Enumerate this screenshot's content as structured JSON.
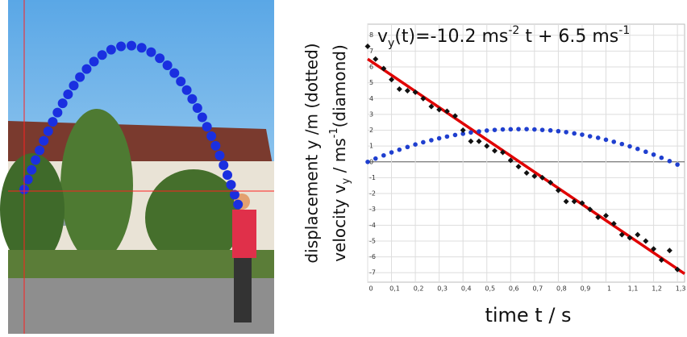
{
  "chart_data": {
    "type": "scatter",
    "annotation": [
      "v",
      "y",
      "(t)=-10.2 ms",
      "-2",
      " t + 6.5 ms",
      "-1"
    ],
    "ylabel": [
      "displacement y /m (dotted)",
      "velocity v",
      "y",
      " / ms",
      "-1",
      "(diamond)"
    ],
    "xlabel": "time t / s",
    "x": [
      0,
      0.033,
      0.067,
      0.1,
      0.133,
      0.167,
      0.2,
      0.233,
      0.267,
      0.3,
      0.333,
      0.367,
      0.4,
      0.433,
      0.467,
      0.5,
      0.533,
      0.567,
      0.6,
      0.633,
      0.667,
      0.7,
      0.733,
      0.767,
      0.8,
      0.833,
      0.867,
      0.9,
      0.933,
      0.967,
      1.0,
      1.033,
      1.067,
      1.1,
      1.133,
      1.167,
      1.2,
      1.233,
      1.267,
      1.3
    ],
    "series": [
      {
        "color": "#1f3fcf",
        "marker": "circle",
        "values": [
          0,
          0.21,
          0.41,
          0.6,
          0.77,
          0.94,
          1.1,
          1.24,
          1.37,
          1.49,
          1.6,
          1.7,
          1.78,
          1.86,
          1.92,
          1.98,
          2.02,
          2.05,
          2.06,
          2.07,
          2.07,
          2.05,
          2.02,
          1.99,
          1.94,
          1.88,
          1.8,
          1.72,
          1.62,
          1.52,
          1.4,
          1.27,
          1.13,
          0.98,
          0.82,
          0.64,
          0.46,
          0.26,
          0.05,
          -0.17
        ]
      },
      {
        "color": "#111111",
        "marker": "diamond",
        "values": [
          7.3,
          6.5,
          5.9,
          5.2,
          4.6,
          4.5,
          4.4,
          4.0,
          3.5,
          3.3,
          3.2,
          2.9,
          2.0,
          1.3,
          1.3,
          1.0,
          0.7,
          0.6,
          0.1,
          -0.3,
          -0.7,
          -0.9,
          -1.0,
          -1.3,
          -1.8,
          -2.5,
          -2.5,
          -2.6,
          -3.0,
          -3.5,
          -3.4,
          -3.9,
          -4.6,
          -4.8,
          -4.6,
          -5.0,
          -5.5,
          -6.2,
          -5.6,
          -6.8
        ]
      }
    ],
    "fit": {
      "slope": -10.2,
      "intercept": 6.5,
      "color": "#e00000"
    },
    "xlim": [
      0,
      1.33
    ],
    "ylim": [
      -7.6,
      8.7
    ],
    "xticks": [
      0,
      {
        "value": 0.1,
        "label": "0,1"
      },
      {
        "value": 0.2,
        "label": "0,2"
      },
      {
        "value": 0.3,
        "label": "0,3"
      },
      {
        "value": 0.4,
        "label": "0,4"
      },
      {
        "value": 0.5,
        "label": "0,5"
      },
      {
        "value": 0.6,
        "label": "0,6"
      },
      {
        "value": 0.7,
        "label": "0,7"
      },
      {
        "value": 0.8,
        "label": "0,8"
      },
      {
        "value": 0.9,
        "label": "0,9"
      },
      1,
      {
        "value": 1.1,
        "label": "1,1"
      },
      {
        "value": 1.2,
        "label": "1,2"
      },
      {
        "value": 1.3,
        "label": "1,3"
      }
    ],
    "yticks": [
      -7,
      -6,
      -5,
      -4,
      -3,
      -2,
      -1,
      0,
      1,
      2,
      3,
      4,
      5,
      6,
      7,
      8
    ],
    "grid": true
  }
}
